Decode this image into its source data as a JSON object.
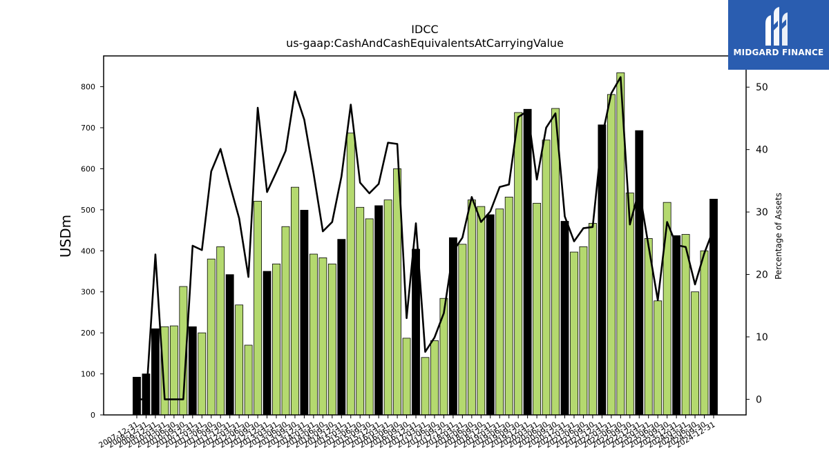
{
  "logo": {
    "text": "MIDGARD FINANCE"
  },
  "colors": {
    "bar_default": "#b4d96f",
    "bar_highlight": "#000000",
    "line": "#000000",
    "logo_bg": "#2a5db0"
  },
  "chart_data": {
    "type": "bar",
    "title": "IDCC",
    "subtitle": "us-gaap:CashAndCashEquivalentsAtCarryingValue",
    "ylabel": "USDm",
    "y2label": "Percentage of Assets",
    "ylim": [
      0,
      875
    ],
    "y2lim": [
      -2.5,
      55
    ],
    "yticks": [
      "0",
      "100",
      "200",
      "300",
      "400",
      "500",
      "600",
      "700",
      "800"
    ],
    "y2ticks": [
      "0",
      "10",
      "20",
      "30",
      "40",
      "50"
    ],
    "categories": [
      "2007-12-31",
      "2008-12-31",
      "2009-12-31",
      "2010-03-31",
      "2010-06-30",
      "2010-09-30",
      "2010-12-31",
      "2011-03-31",
      "2011-06-30",
      "2011-09-30",
      "2011-12-31",
      "2012-03-31",
      "2012-06-30",
      "2012-09-30",
      "2012-12-31",
      "2013-03-31",
      "2013-06-30",
      "2013-09-30",
      "2013-12-31",
      "2014-03-31",
      "2014-06-30",
      "2014-09-30",
      "2014-12-31",
      "2015-03-31",
      "2015-06-30",
      "2015-09-30",
      "2015-12-31",
      "2016-03-31",
      "2016-06-30",
      "2016-09-30",
      "2016-12-31",
      "2017-03-31",
      "2017-06-30",
      "2017-09-30",
      "2017-12-31",
      "2018-03-31",
      "2018-06-30",
      "2018-09-30",
      "2018-12-31",
      "2019-03-31",
      "2019-06-30",
      "2019-09-30",
      "2019-12-31",
      "2020-03-31",
      "2020-06-30",
      "2020-09-30",
      "2020-12-31",
      "2021-03-31",
      "2021-06-30",
      "2021-09-30",
      "2021-12-31",
      "2022-03-31",
      "2022-06-30",
      "2022-09-30",
      "2022-12-31",
      "2023-03-31",
      "2023-06-30",
      "2023-09-30",
      "2023-12-31",
      "2024-03-31",
      "2024-06-30",
      "2024-09-30",
      "2024-12-31"
    ],
    "tick_labels": [
      "2007-12-31",
      "2008-12-31",
      "2009-12-31",
      "2010-03-31",
      "2010-06-30",
      "2010-09-30",
      "2010-12-31",
      "2011-03-31",
      "2011-06-30",
      "2011-09-30",
      "2011-12-31",
      "2012-03-31",
      "2012-06-30",
      "2012-09-30",
      "2012-12-31",
      "2013-03-31",
      "2013-06-30",
      "2013-09-30",
      "2013-12-31",
      "2014-03-31",
      "2014-06-30",
      "2014-09-30",
      "2014-12-31",
      "2015-03-31",
      "2015-06-30",
      "2015-09-30",
      "2015-12-31",
      "2016-03-31",
      "2016-06-30",
      "2016-09-30",
      "2016-12-31",
      "2017-03-31",
      "2017-06-30",
      "2017-09-30",
      "2017-12-31",
      "2018-03-31",
      "2018-06-30",
      "2018-09-30",
      "2018-12-31",
      "2019-03-31",
      "2019-06-30",
      "2019-09-30",
      "2019-12-31",
      "2020-03-31",
      "2020-06-30",
      "2020-09-30",
      "2020-12-31",
      "2021-03-31",
      "2021-06-30",
      "2021-09-30",
      "2021-12-31",
      "2022-03-31",
      "2022-06-30",
      "2022-09-30",
      "2022-12-31",
      "2023-03-31",
      "2023-06-30",
      "2023-09-30",
      "2023-12-31",
      "2024-03-31",
      "2024-06-30",
      "2024-09-30",
      "2024-12-31"
    ],
    "bar_series": {
      "values": [
        92,
        100,
        210,
        215,
        217,
        313,
        215,
        200,
        380,
        410,
        342,
        268,
        170,
        521,
        350,
        368,
        459,
        555,
        499,
        392,
        383,
        368,
        428,
        687,
        506,
        478,
        510,
        524,
        600,
        187,
        404,
        140,
        181,
        284,
        432,
        416,
        524,
        508,
        488,
        502,
        531,
        737,
        745,
        516,
        670,
        747,
        472,
        397,
        410,
        467,
        707,
        781,
        834,
        541,
        693,
        430,
        278,
        518,
        437,
        440,
        300,
        400,
        526
      ],
      "highlight": [
        true,
        true,
        true,
        false,
        false,
        false,
        true,
        false,
        false,
        false,
        true,
        false,
        false,
        false,
        true,
        false,
        false,
        false,
        true,
        false,
        false,
        false,
        true,
        false,
        false,
        false,
        true,
        false,
        false,
        false,
        true,
        false,
        false,
        false,
        true,
        false,
        false,
        false,
        true,
        false,
        false,
        false,
        true,
        false,
        false,
        false,
        true,
        false,
        false,
        false,
        true,
        false,
        false,
        false,
        true,
        false,
        false,
        false,
        true,
        false,
        false,
        false,
        true
      ]
    },
    "line_series": {
      "values": [
        0,
        0,
        23.2,
        0,
        0,
        0,
        24.6,
        23.9,
        36.5,
        40.1,
        34.4,
        29,
        19.6,
        46.7,
        33.2,
        36.4,
        39.8,
        49.3,
        44.8,
        36.2,
        26.9,
        28.4,
        35.7,
        47.2,
        34.7,
        33,
        34.5,
        41.1,
        40.9,
        13,
        28.2,
        7.6,
        9.9,
        13.8,
        23.7,
        25.9,
        32.4,
        28.4,
        30.1,
        34,
        34.4,
        45.2,
        46.2,
        35.2,
        43.5,
        45.8,
        29.3,
        25.3,
        27.4,
        27.6,
        42,
        49,
        51.6,
        28,
        33.6,
        24.6,
        15.9,
        28.4,
        24.7,
        24.4,
        18.4,
        23.4,
        27.3
      ]
    }
  }
}
